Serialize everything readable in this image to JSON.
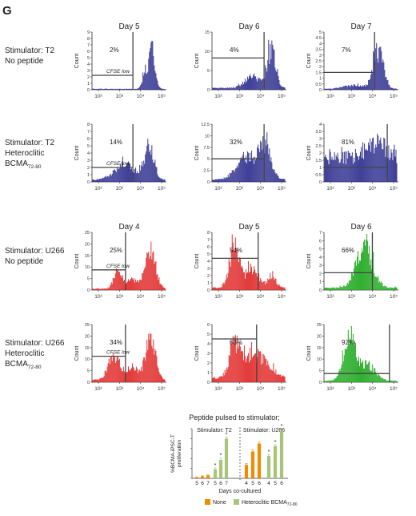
{
  "panel_letter": "G",
  "tick_labels_x": [
    "10²",
    "10³",
    "10⁴",
    "10⁵"
  ],
  "colors": {
    "blue": "#2e2e8f",
    "red": "#e02828",
    "green": "#1ea81e",
    "gate": "#444444",
    "orange": "#f08a00",
    "olive": "#a9c47a"
  },
  "chart_data": [
    {
      "type": "histogram",
      "group": "T2-none",
      "label_lines": [
        "Stimulator: T2",
        "No peptide"
      ],
      "sub": "",
      "panels": [
        {
          "day": "Day 5",
          "percent": "2%",
          "gate_label": "CFSE low",
          "ylabel": "Count",
          "color": "blue",
          "yticks": [
            "0",
            "1",
            "2",
            "3",
            "4",
            "5",
            "6",
            "7",
            "8",
            "9"
          ],
          "ymax": 9,
          "gate_x": 0.55,
          "gate_y": 0.25,
          "shape": "late",
          "decade_labels": true
        },
        {
          "day": "Day 6",
          "percent": "4%",
          "gate_label": "",
          "ylabel": "Count",
          "color": "blue",
          "yticks": [
            "0",
            "5",
            "10",
            "15"
          ],
          "ymax": 15,
          "gate_x": 0.7,
          "gate_y": 0.55,
          "shape": "late-spread",
          "decade_labels": true
        },
        {
          "day": "Day 7",
          "percent": "7%",
          "gate_label": "",
          "ylabel": "Count",
          "color": "blue",
          "yticks": [
            "0",
            "0.5",
            "1",
            "1.5",
            "2",
            "2.5",
            "3",
            "3.5",
            "4",
            "4.5",
            "5"
          ],
          "ymax": 5,
          "gate_x": 0.68,
          "gate_y": 0.3,
          "shape": "late-thin",
          "decade_labels": true
        }
      ]
    },
    {
      "type": "histogram",
      "group": "T2-het",
      "label_lines": [
        "Stimulator: T2",
        "Heteroclitic",
        "BCMA"
      ],
      "sub": "72-80",
      "panels": [
        {
          "day": "",
          "percent": "14%",
          "gate_label": "CFSE low",
          "ylabel": "Count",
          "color": "blue",
          "yticks": [
            "0",
            "1",
            "2",
            "3",
            "4",
            "5",
            "6",
            "7",
            "8"
          ],
          "ymax": 8,
          "gate_x": 0.55,
          "gate_y": 0.25,
          "shape": "spread-low",
          "decade_labels": true
        },
        {
          "day": "",
          "percent": "32%",
          "gate_label": "",
          "ylabel": "Count",
          "color": "blue",
          "yticks": [
            "0",
            "2.5",
            "5",
            "7.5",
            "10",
            "12.5"
          ],
          "ymax": 12.5,
          "gate_x": 0.7,
          "gate_y": 0.4,
          "shape": "wide",
          "decade_labels": true
        },
        {
          "day": "",
          "percent": "81%",
          "gate_label": "",
          "ylabel": "Count",
          "color": "blue",
          "yticks": [
            "0",
            "0.5",
            "1",
            "1.5",
            "2",
            "2.5",
            "3",
            "3.5",
            "4"
          ],
          "ymax": 4,
          "gate_x": 0.85,
          "gate_y": 0.25,
          "shape": "flat",
          "decade_labels": true
        }
      ]
    },
    {
      "type": "histogram",
      "group": "U266-none",
      "label_lines": [
        "Stimulator: U266",
        "No peptide"
      ],
      "sub": "",
      "panels": [
        {
          "day": "Day 4",
          "percent": "25%",
          "gate_label": "CFSE low",
          "ylabel": "Count",
          "color": "red",
          "yticks": [
            "0",
            "5",
            "10",
            "15",
            "20",
            "25"
          ],
          "ymax": 25,
          "gate_x": 0.45,
          "gate_y": 0.35,
          "shape": "red-bimodal",
          "decade_labels": true
        },
        {
          "day": "Day 5",
          "percent": "54%",
          "gate_label": "",
          "ylabel": "Count",
          "color": "red",
          "yticks": [
            "0",
            "1",
            "2",
            "3",
            "4",
            "5",
            "6",
            "7",
            "8"
          ],
          "ymax": 8,
          "gate_x": 0.62,
          "gate_y": 0.55,
          "shape": "red-left",
          "decade_labels": true
        },
        {
          "day": "Day 6",
          "percent": "66%",
          "gate_label": "",
          "ylabel": "Count",
          "color": "green",
          "yticks": [
            "0",
            "1",
            "2",
            "3",
            "4",
            "5",
            "6",
            "7"
          ],
          "ymax": 7,
          "gate_x": 0.65,
          "gate_y": 0.3,
          "shape": "green-hill",
          "decade_labels": true
        }
      ]
    },
    {
      "type": "histogram",
      "group": "U266-het",
      "label_lines": [
        "Stimulator: U266",
        "Heteroclitic",
        "BCMA"
      ],
      "sub": "72-80",
      "panels": [
        {
          "day": "",
          "percent": "34%",
          "gate_label": "CFSE low",
          "ylabel": "Count",
          "color": "red",
          "yticks": [
            "0",
            "5",
            "10",
            "15",
            "20",
            "25"
          ],
          "ymax": 25,
          "gate_x": 0.45,
          "gate_y": 0.45,
          "shape": "red-bimodal2",
          "decade_labels": true
        },
        {
          "day": "",
          "percent": "63%",
          "gate_label": "",
          "ylabel": "Count",
          "color": "red",
          "yticks": [
            "0",
            "1",
            "2",
            "3",
            "4",
            "5",
            "6"
          ],
          "ymax": 6,
          "gate_x": 0.6,
          "gate_y": 0.75,
          "shape": "red-flat",
          "decade_labels": true
        },
        {
          "day": "",
          "percent": "92%",
          "gate_label": "",
          "ylabel": "Count",
          "color": "green",
          "yticks": [
            "0",
            "5",
            "10",
            "15",
            "20",
            "25"
          ],
          "ymax": 25,
          "gate_x": 0.88,
          "gate_y": 0.15,
          "shape": "green-left",
          "decade_labels": true
        }
      ]
    },
    {
      "type": "bar",
      "title": "Peptide pulsed to stimulator;",
      "ylabel_lines": [
        "%BCMA-iPSC-T",
        "proliferation"
      ],
      "xlabel": "Days co-cultured",
      "group_labels": [
        "Stimulator: T2",
        "Stimulator: U266"
      ],
      "categories": [
        "5",
        "6",
        "7",
        "5",
        "6",
        "7",
        "4",
        "5",
        "6",
        "4",
        "5",
        "6"
      ],
      "series_of_bar": [
        "None",
        "None",
        "None",
        "Heteroclitic",
        "Heteroclitic",
        "Heteroclitic",
        "None",
        "None",
        "None",
        "Heteroclitic",
        "Heteroclitic",
        "Heteroclitic"
      ],
      "values": [
        2,
        4,
        6,
        18,
        37,
        80,
        27,
        54,
        70,
        45,
        65,
        96
      ],
      "errors": [
        1,
        1,
        1,
        3,
        4,
        3,
        3,
        3,
        3,
        3,
        3,
        4
      ],
      "asterisks": [
        false,
        false,
        false,
        true,
        true,
        true,
        false,
        false,
        false,
        true,
        true,
        true
      ],
      "ylim": [
        0,
        100
      ],
      "legend": [
        {
          "name": "None",
          "color": "#f08a00"
        },
        {
          "name": "Heteroclitic BCMA",
          "sub": "72-80",
          "color": "#a9c47a"
        }
      ]
    }
  ]
}
